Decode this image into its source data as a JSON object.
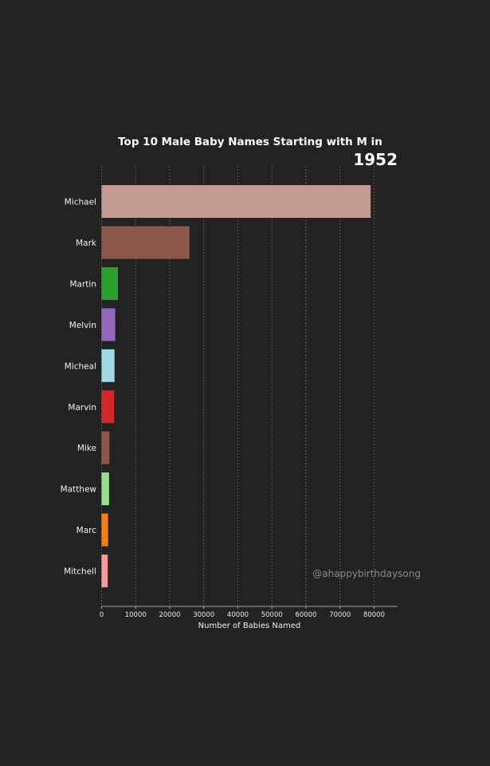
{
  "chart_data": {
    "type": "bar",
    "orientation": "horizontal",
    "title": "Top 10 Male Baby Names Starting with M in",
    "year": "1952",
    "xlabel": "Number of Babies Named",
    "ylabel": "",
    "xlim": [
      0,
      87000
    ],
    "xticks": [
      0,
      10000,
      20000,
      30000,
      40000,
      50000,
      60000,
      70000,
      80000
    ],
    "grid": "vertical dashed",
    "categories": [
      "Michael",
      "Mark",
      "Martin",
      "Melvin",
      "Micheal",
      "Marvin",
      "Mike",
      "Matthew",
      "Marc",
      "Mitchell"
    ],
    "values": [
      79000,
      25800,
      4800,
      4000,
      3800,
      3700,
      2300,
      2200,
      1900,
      1800
    ],
    "colors": [
      "#c49c94",
      "#8c564b",
      "#2ca02c",
      "#9467bd",
      "#9edae5",
      "#d62728",
      "#8c564b",
      "#98df8a",
      "#ff7f0e",
      "#ff9896"
    ]
  },
  "watermark": "@ahappybirthdaysong",
  "theme": {
    "background": "#222222",
    "grid_color": "#6a6a6a",
    "axis_color": "#cfcfcf"
  }
}
